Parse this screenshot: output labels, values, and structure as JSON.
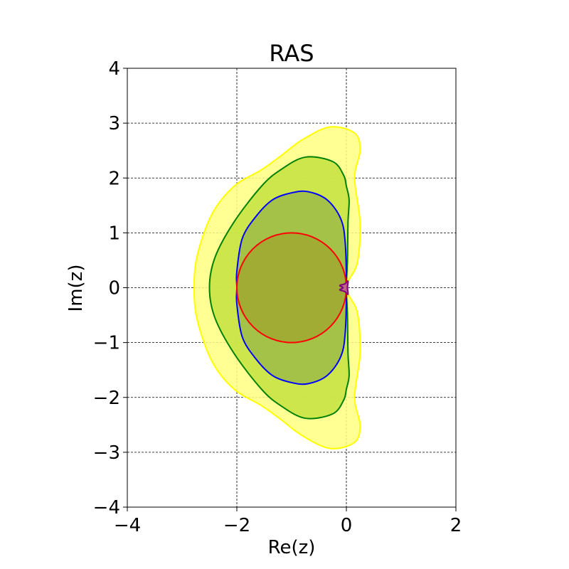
{
  "chart_data": {
    "type": "area",
    "title": "RAS",
    "xlabel": "Re(z)",
    "ylabel": "Im(z)",
    "xlim": [
      -4,
      2
    ],
    "ylim": [
      -4,
      4
    ],
    "x_ticks": [
      -4,
      -2,
      0,
      2
    ],
    "y_ticks": [
      -4,
      -3,
      -2,
      -1,
      0,
      1,
      2,
      3,
      4
    ],
    "x_tick_labels": [
      "−4",
      "−2",
      "0",
      "2"
    ],
    "y_tick_labels": [
      "−4",
      "−3",
      "−2",
      "−1",
      "0",
      "1",
      "2",
      "3",
      "4"
    ],
    "grid": true,
    "grid_style": "dashed",
    "series": [
      {
        "fill": "#ffff80",
        "stroke": "#ffff00",
        "points": [
          [
            0.0,
            0
          ],
          [
            0.2,
            0.45
          ],
          [
            0.25,
            1.2
          ],
          [
            0.15,
            2.0
          ],
          [
            0.25,
            2.5
          ],
          [
            0.15,
            2.82
          ],
          [
            -0.3,
            2.93
          ],
          [
            -0.8,
            2.7
          ],
          [
            -1.2,
            2.4
          ],
          [
            -1.55,
            2.15
          ],
          [
            -2.05,
            1.85
          ],
          [
            -2.45,
            1.35
          ],
          [
            -2.72,
            0.6
          ],
          [
            -2.78,
            0.0
          ],
          [
            -2.72,
            -0.6
          ],
          [
            -2.45,
            -1.35
          ],
          [
            -2.05,
            -1.85
          ],
          [
            -1.55,
            -2.15
          ],
          [
            -1.2,
            -2.4
          ],
          [
            -0.8,
            -2.7
          ],
          [
            -0.3,
            -2.93
          ],
          [
            0.15,
            -2.82
          ],
          [
            0.25,
            -2.5
          ],
          [
            0.15,
            -2.0
          ],
          [
            0.25,
            -1.2
          ],
          [
            0.2,
            -0.45
          ]
        ]
      },
      {
        "fill": "#c4e240",
        "stroke": "#008000",
        "points": [
          [
            0.0,
            0
          ],
          [
            0.02,
            0.5
          ],
          [
            0.03,
            1.2
          ],
          [
            0.05,
            1.6
          ],
          [
            0.0,
            1.85
          ],
          [
            -0.05,
            2.05
          ],
          [
            -0.25,
            2.3
          ],
          [
            -0.75,
            2.38
          ],
          [
            -1.2,
            2.15
          ],
          [
            -1.55,
            1.85
          ],
          [
            -2.05,
            1.2
          ],
          [
            -2.4,
            0.55
          ],
          [
            -2.5,
            0.0
          ],
          [
            -2.4,
            -0.55
          ],
          [
            -2.05,
            -1.2
          ],
          [
            -1.55,
            -1.85
          ],
          [
            -1.2,
            -2.15
          ],
          [
            -0.75,
            -2.38
          ],
          [
            -0.25,
            -2.3
          ],
          [
            -0.05,
            -2.05
          ],
          [
            0.0,
            -1.85
          ],
          [
            0.05,
            -1.6
          ],
          [
            0.03,
            -1.2
          ],
          [
            0.02,
            -0.5
          ]
        ]
      },
      {
        "fill": "#9cbb48",
        "stroke": "#0000ff",
        "points": [
          [
            0.0,
            0
          ],
          [
            -0.02,
            0.8
          ],
          [
            -0.1,
            1.25
          ],
          [
            -0.35,
            1.6
          ],
          [
            -0.7,
            1.75
          ],
          [
            -1.0,
            1.73
          ],
          [
            -1.35,
            1.6
          ],
          [
            -1.65,
            1.3
          ],
          [
            -1.9,
            0.9
          ],
          [
            -2.0,
            0.3
          ],
          [
            -2.0,
            0.0
          ],
          [
            -2.0,
            -0.3
          ],
          [
            -1.9,
            -0.9
          ],
          [
            -1.65,
            -1.3
          ],
          [
            -1.35,
            -1.6
          ],
          [
            -1.0,
            -1.73
          ],
          [
            -0.7,
            -1.75
          ],
          [
            -0.35,
            -1.6
          ],
          [
            -0.1,
            -1.25
          ],
          [
            -0.02,
            -0.8
          ]
        ]
      },
      {
        "fill": "#a0a830",
        "stroke": "#ff0000",
        "circle": {
          "cx": -1,
          "cy": 0,
          "r": 1
        }
      },
      {
        "fill": "#c06090",
        "stroke": "#800080",
        "points": [
          [
            0.03,
            0.12
          ],
          [
            -0.03,
            0.07
          ],
          [
            -0.12,
            0.04
          ],
          [
            -0.06,
            0.0
          ],
          [
            -0.12,
            -0.04
          ],
          [
            -0.03,
            -0.07
          ],
          [
            0.03,
            -0.12
          ],
          [
            0.02,
            0.0
          ]
        ]
      }
    ]
  }
}
